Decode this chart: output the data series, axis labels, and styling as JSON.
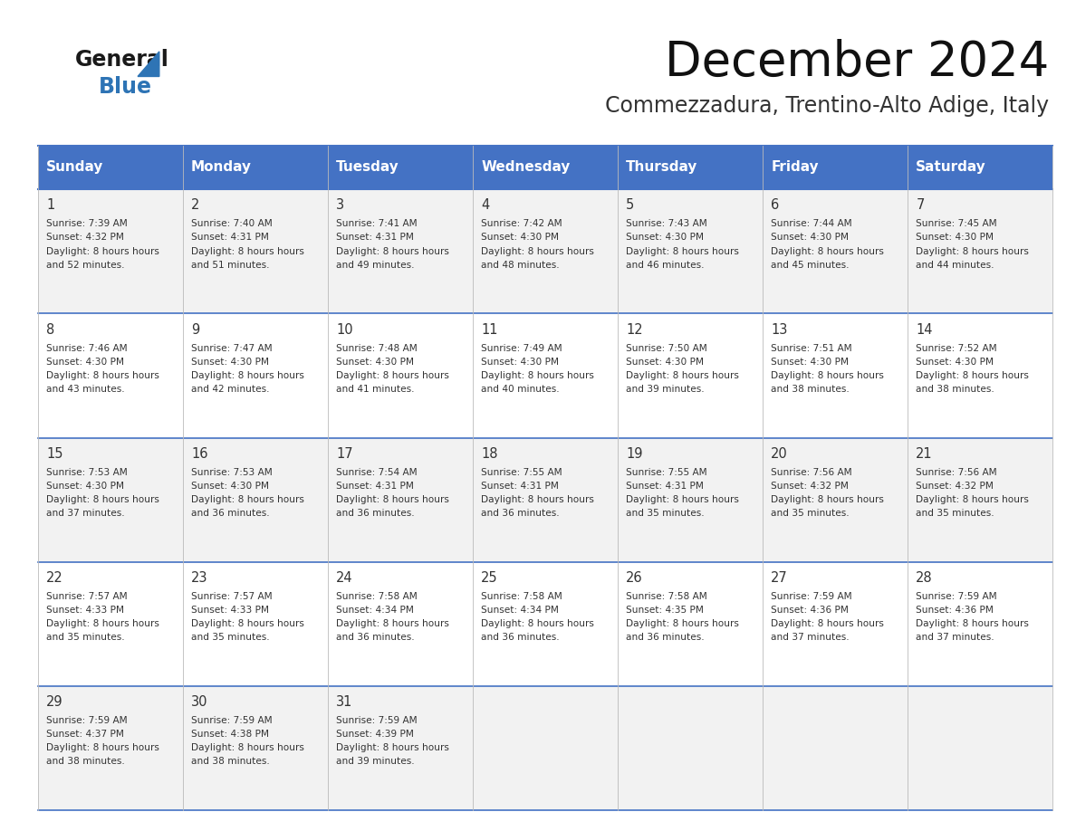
{
  "title": "December 2024",
  "subtitle": "Commezzadura, Trentino-Alto Adige, Italy",
  "days_of_week": [
    "Sunday",
    "Monday",
    "Tuesday",
    "Wednesday",
    "Thursday",
    "Friday",
    "Saturday"
  ],
  "header_bg": "#4472C4",
  "header_text": "#FFFFFF",
  "row_bg_odd": "#F2F2F2",
  "row_bg_even": "#FFFFFF",
  "border_color": "#4472C4",
  "cell_text_color": "#333333",
  "calendar_data": [
    [
      {
        "day": 1,
        "sunrise": "7:39 AM",
        "sunset": "4:32 PM",
        "daylight": "8 hours and 52 minutes"
      },
      {
        "day": 2,
        "sunrise": "7:40 AM",
        "sunset": "4:31 PM",
        "daylight": "8 hours and 51 minutes"
      },
      {
        "day": 3,
        "sunrise": "7:41 AM",
        "sunset": "4:31 PM",
        "daylight": "8 hours and 49 minutes"
      },
      {
        "day": 4,
        "sunrise": "7:42 AM",
        "sunset": "4:30 PM",
        "daylight": "8 hours and 48 minutes"
      },
      {
        "day": 5,
        "sunrise": "7:43 AM",
        "sunset": "4:30 PM",
        "daylight": "8 hours and 46 minutes"
      },
      {
        "day": 6,
        "sunrise": "7:44 AM",
        "sunset": "4:30 PM",
        "daylight": "8 hours and 45 minutes"
      },
      {
        "day": 7,
        "sunrise": "7:45 AM",
        "sunset": "4:30 PM",
        "daylight": "8 hours and 44 minutes"
      }
    ],
    [
      {
        "day": 8,
        "sunrise": "7:46 AM",
        "sunset": "4:30 PM",
        "daylight": "8 hours and 43 minutes"
      },
      {
        "day": 9,
        "sunrise": "7:47 AM",
        "sunset": "4:30 PM",
        "daylight": "8 hours and 42 minutes"
      },
      {
        "day": 10,
        "sunrise": "7:48 AM",
        "sunset": "4:30 PM",
        "daylight": "8 hours and 41 minutes"
      },
      {
        "day": 11,
        "sunrise": "7:49 AM",
        "sunset": "4:30 PM",
        "daylight": "8 hours and 40 minutes"
      },
      {
        "day": 12,
        "sunrise": "7:50 AM",
        "sunset": "4:30 PM",
        "daylight": "8 hours and 39 minutes"
      },
      {
        "day": 13,
        "sunrise": "7:51 AM",
        "sunset": "4:30 PM",
        "daylight": "8 hours and 38 minutes"
      },
      {
        "day": 14,
        "sunrise": "7:52 AM",
        "sunset": "4:30 PM",
        "daylight": "8 hours and 38 minutes"
      }
    ],
    [
      {
        "day": 15,
        "sunrise": "7:53 AM",
        "sunset": "4:30 PM",
        "daylight": "8 hours and 37 minutes"
      },
      {
        "day": 16,
        "sunrise": "7:53 AM",
        "sunset": "4:30 PM",
        "daylight": "8 hours and 36 minutes"
      },
      {
        "day": 17,
        "sunrise": "7:54 AM",
        "sunset": "4:31 PM",
        "daylight": "8 hours and 36 minutes"
      },
      {
        "day": 18,
        "sunrise": "7:55 AM",
        "sunset": "4:31 PM",
        "daylight": "8 hours and 36 minutes"
      },
      {
        "day": 19,
        "sunrise": "7:55 AM",
        "sunset": "4:31 PM",
        "daylight": "8 hours and 35 minutes"
      },
      {
        "day": 20,
        "sunrise": "7:56 AM",
        "sunset": "4:32 PM",
        "daylight": "8 hours and 35 minutes"
      },
      {
        "day": 21,
        "sunrise": "7:56 AM",
        "sunset": "4:32 PM",
        "daylight": "8 hours and 35 minutes"
      }
    ],
    [
      {
        "day": 22,
        "sunrise": "7:57 AM",
        "sunset": "4:33 PM",
        "daylight": "8 hours and 35 minutes"
      },
      {
        "day": 23,
        "sunrise": "7:57 AM",
        "sunset": "4:33 PM",
        "daylight": "8 hours and 35 minutes"
      },
      {
        "day": 24,
        "sunrise": "7:58 AM",
        "sunset": "4:34 PM",
        "daylight": "8 hours and 36 minutes"
      },
      {
        "day": 25,
        "sunrise": "7:58 AM",
        "sunset": "4:34 PM",
        "daylight": "8 hours and 36 minutes"
      },
      {
        "day": 26,
        "sunrise": "7:58 AM",
        "sunset": "4:35 PM",
        "daylight": "8 hours and 36 minutes"
      },
      {
        "day": 27,
        "sunrise": "7:59 AM",
        "sunset": "4:36 PM",
        "daylight": "8 hours and 37 minutes"
      },
      {
        "day": 28,
        "sunrise": "7:59 AM",
        "sunset": "4:36 PM",
        "daylight": "8 hours and 37 minutes"
      }
    ],
    [
      {
        "day": 29,
        "sunrise": "7:59 AM",
        "sunset": "4:37 PM",
        "daylight": "8 hours and 38 minutes"
      },
      {
        "day": 30,
        "sunrise": "7:59 AM",
        "sunset": "4:38 PM",
        "daylight": "8 hours and 38 minutes"
      },
      {
        "day": 31,
        "sunrise": "7:59 AM",
        "sunset": "4:39 PM",
        "daylight": "8 hours and 39 minutes"
      },
      null,
      null,
      null,
      null
    ]
  ]
}
